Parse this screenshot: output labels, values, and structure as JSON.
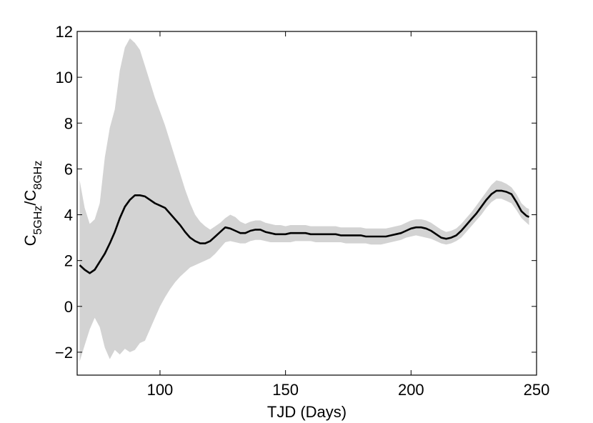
{
  "chart_data": {
    "type": "line",
    "title": "",
    "xlabel": "TJD (Days)",
    "ylabel": {
      "base1": "C",
      "sub1": "5GHz",
      "slash": "/",
      "base2": "C",
      "sub2": "8GHz"
    },
    "xlim": [
      67,
      250
    ],
    "ylim": [
      -3,
      12
    ],
    "x_ticks": [
      100,
      150,
      200,
      250
    ],
    "y_ticks": [
      -2,
      0,
      2,
      4,
      6,
      8,
      10,
      12
    ],
    "grid": false,
    "legend": "none",
    "colors": {
      "line": "#000000",
      "band": "#d3d3d3",
      "axis": "#000000"
    },
    "series": [
      {
        "x": [
          68,
          70,
          72,
          74,
          76,
          78,
          80,
          82,
          84,
          86,
          88,
          90,
          92,
          94,
          96,
          98,
          100,
          102,
          104,
          106,
          108,
          110,
          112,
          114,
          116,
          118,
          120,
          122,
          124,
          126,
          128,
          130,
          132,
          134,
          136,
          138,
          140,
          142,
          144,
          146,
          148,
          150,
          152,
          154,
          156,
          158,
          160,
          162,
          164,
          166,
          168,
          170,
          172,
          174,
          176,
          178,
          180,
          182,
          184,
          186,
          188,
          190,
          192,
          194,
          196,
          198,
          200,
          202,
          204,
          206,
          208,
          210,
          212,
          214,
          216,
          218,
          220,
          222,
          224,
          226,
          228,
          230,
          232,
          234,
          236,
          238,
          240,
          242,
          244,
          246,
          247
        ],
        "values": [
          1.8,
          1.6,
          1.45,
          1.6,
          1.95,
          2.3,
          2.75,
          3.25,
          3.85,
          4.35,
          4.65,
          4.85,
          4.85,
          4.8,
          4.65,
          4.5,
          4.4,
          4.3,
          4.05,
          3.8,
          3.55,
          3.25,
          3.0,
          2.85,
          2.75,
          2.75,
          2.85,
          3.05,
          3.25,
          3.45,
          3.4,
          3.3,
          3.2,
          3.2,
          3.3,
          3.35,
          3.35,
          3.25,
          3.2,
          3.15,
          3.15,
          3.15,
          3.2,
          3.2,
          3.2,
          3.2,
          3.15,
          3.15,
          3.15,
          3.15,
          3.15,
          3.15,
          3.1,
          3.1,
          3.1,
          3.1,
          3.1,
          3.05,
          3.05,
          3.05,
          3.05,
          3.05,
          3.1,
          3.15,
          3.2,
          3.3,
          3.4,
          3.45,
          3.45,
          3.4,
          3.3,
          3.15,
          3.0,
          2.95,
          3.0,
          3.1,
          3.3,
          3.55,
          3.8,
          4.05,
          4.35,
          4.65,
          4.9,
          5.05,
          5.05,
          5.0,
          4.9,
          4.55,
          4.15,
          3.95,
          3.9
        ],
        "lower": [
          -2.4,
          -1.7,
          -1.0,
          -0.5,
          -0.9,
          -1.8,
          -2.3,
          -1.9,
          -2.1,
          -1.85,
          -2.0,
          -1.9,
          -1.6,
          -1.5,
          -1.0,
          -0.5,
          0.0,
          0.4,
          0.75,
          1.05,
          1.3,
          1.5,
          1.7,
          1.8,
          1.9,
          2.0,
          2.1,
          2.3,
          2.55,
          2.8,
          2.85,
          2.8,
          2.75,
          2.75,
          2.85,
          2.9,
          2.9,
          2.85,
          2.8,
          2.8,
          2.8,
          2.8,
          2.8,
          2.85,
          2.85,
          2.85,
          2.85,
          2.8,
          2.8,
          2.8,
          2.8,
          2.8,
          2.8,
          2.75,
          2.75,
          2.75,
          2.75,
          2.75,
          2.7,
          2.7,
          2.7,
          2.75,
          2.8,
          2.85,
          2.9,
          3.0,
          3.05,
          3.1,
          3.05,
          3.0,
          2.95,
          2.85,
          2.75,
          2.7,
          2.75,
          2.85,
          3.0,
          3.25,
          3.5,
          3.75,
          4.0,
          4.3,
          4.55,
          4.7,
          4.7,
          4.6,
          4.5,
          4.2,
          3.85,
          3.65,
          3.55
        ],
        "upper": [
          5.5,
          4.3,
          3.6,
          3.8,
          4.5,
          6.5,
          7.8,
          8.6,
          10.3,
          11.3,
          11.7,
          11.5,
          11.2,
          10.5,
          9.8,
          9.1,
          8.5,
          7.9,
          7.2,
          6.5,
          5.8,
          5.1,
          4.5,
          4.0,
          3.7,
          3.5,
          3.35,
          3.5,
          3.65,
          3.85,
          4.0,
          3.9,
          3.7,
          3.6,
          3.7,
          3.75,
          3.75,
          3.65,
          3.6,
          3.55,
          3.55,
          3.5,
          3.55,
          3.55,
          3.55,
          3.55,
          3.5,
          3.5,
          3.5,
          3.5,
          3.5,
          3.5,
          3.45,
          3.45,
          3.45,
          3.45,
          3.45,
          3.4,
          3.4,
          3.4,
          3.4,
          3.4,
          3.45,
          3.5,
          3.55,
          3.65,
          3.75,
          3.8,
          3.8,
          3.75,
          3.65,
          3.5,
          3.35,
          3.25,
          3.3,
          3.4,
          3.6,
          3.85,
          4.1,
          4.4,
          4.7,
          5.0,
          5.3,
          5.5,
          5.45,
          5.35,
          5.2,
          4.9,
          4.5,
          4.3,
          4.25
        ]
      }
    ]
  }
}
